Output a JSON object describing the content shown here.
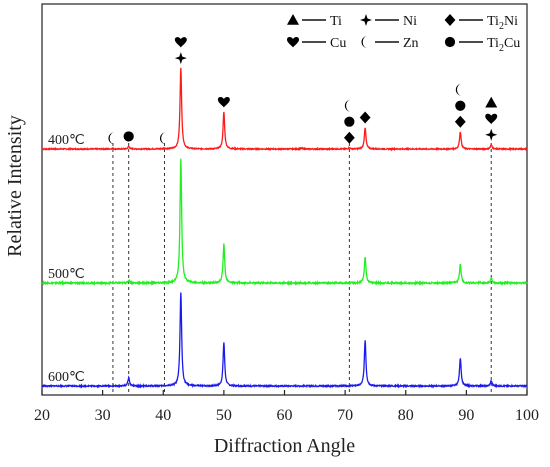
{
  "chart_data": {
    "type": "line",
    "title": "",
    "xlabel": "Diffraction Angle",
    "ylabel": "Relative Intensity",
    "xlim": [
      20,
      100
    ],
    "xticks": [
      "20",
      "30",
      "40",
      "50",
      "60",
      "70",
      "80",
      "90",
      "100"
    ],
    "y_ticks_shown": false,
    "grid": false,
    "legend_placement": "top-right",
    "legend": [
      {
        "symbol": "triangle",
        "label": "Ti"
      },
      {
        "symbol": "star4",
        "label": "Ni"
      },
      {
        "symbol": "diamond",
        "label": "Ti2Ni",
        "label_main": "Ti",
        "label_sub": "2",
        "label_tail": "Ni"
      },
      {
        "symbol": "heart",
        "label": "Cu"
      },
      {
        "symbol": "crescent",
        "label": "Zn"
      },
      {
        "symbol": "circle",
        "label": "Ti2Cu",
        "label_main": "Ti",
        "label_sub": "2",
        "label_tail": "Cu"
      }
    ],
    "series": [
      {
        "name": "400℃",
        "color": "#ff1a1a",
        "baseline": 0.7,
        "peaks": [
          [
            31.7,
            0.008
          ],
          [
            34.3,
            0.03
          ],
          [
            40.2,
            0.008
          ],
          [
            42.9,
            0.94
          ],
          [
            50.0,
            0.43
          ],
          [
            62.8,
            0.01
          ],
          [
            70.7,
            0.015
          ],
          [
            73.3,
            0.25
          ],
          [
            89.0,
            0.2
          ],
          [
            94.1,
            0.05
          ]
        ]
      },
      {
        "name": "500℃",
        "color": "#22ee22",
        "baseline": 1.0,
        "peaks": [
          [
            34.3,
            0.02
          ],
          [
            42.9,
            1.0
          ],
          [
            50.0,
            0.31
          ],
          [
            73.3,
            0.21
          ],
          [
            89.0,
            0.15
          ],
          [
            94.1,
            0.04
          ]
        ]
      },
      {
        "name": "600℃",
        "color": "#1a1aee",
        "baseline": 1.0,
        "peaks": [
          [
            34.3,
            0.08
          ],
          [
            42.9,
            0.9
          ],
          [
            50.0,
            0.42
          ],
          [
            73.3,
            0.44
          ],
          [
            89.0,
            0.27
          ],
          [
            94.1,
            0.05
          ]
        ]
      }
    ],
    "reference_lines_x": [
      31.7,
      34.3,
      40.2,
      70.7,
      94.1
    ],
    "phase_markers": [
      {
        "x": 31.7,
        "symbols": [
          "crescent"
        ]
      },
      {
        "x": 34.3,
        "symbols": [
          "circle"
        ]
      },
      {
        "x": 40.2,
        "symbols": [
          "crescent"
        ]
      },
      {
        "x": 42.9,
        "symbols": [
          "heart",
          "star4"
        ]
      },
      {
        "x": 50.0,
        "symbols": [
          "heart"
        ]
      },
      {
        "x": 70.7,
        "symbols": [
          "crescent",
          "circle",
          "diamond"
        ]
      },
      {
        "x": 73.3,
        "symbols": [
          "diamond"
        ]
      },
      {
        "x": 89.0,
        "symbols": [
          "crescent",
          "circle",
          "diamond"
        ]
      },
      {
        "x": 94.1,
        "symbols": [
          "triangle",
          "heart",
          "star4"
        ]
      }
    ]
  }
}
